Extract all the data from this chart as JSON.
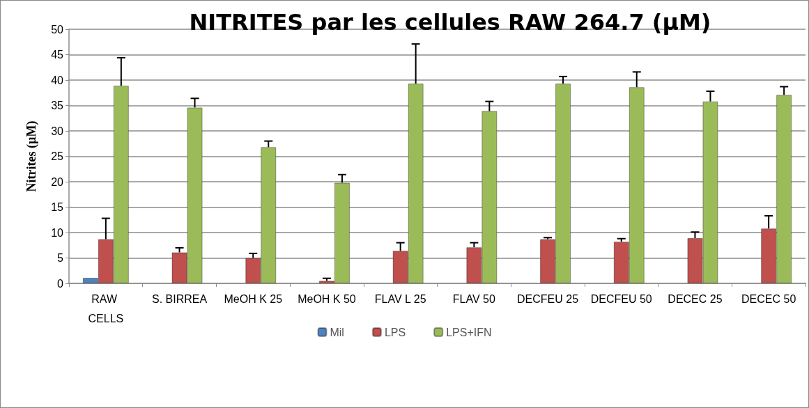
{
  "chart_data": {
    "type": "bar",
    "title": "NITRITES par les cellules RAW 264.7 (µM)",
    "ylabel": "Nitrites (µM)",
    "categories": [
      "RAW CELLS",
      "S. BIRREA",
      "MeOH K 25",
      "MeOH K 50",
      "FLAV L 25",
      "FLAV 50",
      "DECFEU 25",
      "DECFEU 50",
      "DECEC 25",
      "DECEC 50"
    ],
    "series": [
      {
        "name": "Mil",
        "color": "#4f81bd",
        "values": [
          1.1,
          null,
          null,
          null,
          null,
          null,
          null,
          null,
          null,
          null
        ]
      },
      {
        "name": "LPS",
        "color": "#c0504d",
        "values": [
          8.7,
          6.1,
          5.0,
          0.5,
          6.4,
          7.1,
          8.7,
          8.2,
          8.9,
          10.8
        ],
        "errors": [
          [
            8.7,
            12.8
          ],
          [
            6.1,
            7.0
          ],
          [
            5.0,
            5.9
          ],
          [
            0.5,
            1.0
          ],
          [
            6.4,
            8.0
          ],
          [
            7.1,
            8.0
          ],
          [
            8.7,
            9.0
          ],
          [
            8.2,
            8.8
          ],
          [
            8.9,
            10.1
          ],
          [
            10.8,
            13.3
          ]
        ]
      },
      {
        "name": "LPS+IFN",
        "color": "#9bbb59",
        "values": [
          38.9,
          34.6,
          26.8,
          19.8,
          39.3,
          33.9,
          39.3,
          38.6,
          35.8,
          37.1
        ],
        "errors": [
          [
            38.9,
            44.4
          ],
          [
            34.6,
            36.4
          ],
          [
            26.8,
            28.0
          ],
          [
            19.8,
            21.4
          ],
          [
            39.3,
            47.1
          ],
          [
            33.9,
            35.8
          ],
          [
            39.3,
            40.7
          ],
          [
            38.6,
            41.6
          ],
          [
            35.8,
            37.8
          ],
          [
            37.1,
            38.7
          ]
        ]
      }
    ],
    "ylim": [
      0,
      50
    ],
    "yticks": [
      0,
      5,
      10,
      15,
      20,
      25,
      30,
      35,
      40,
      45,
      50
    ],
    "grid": "y",
    "legend": "bottom"
  }
}
